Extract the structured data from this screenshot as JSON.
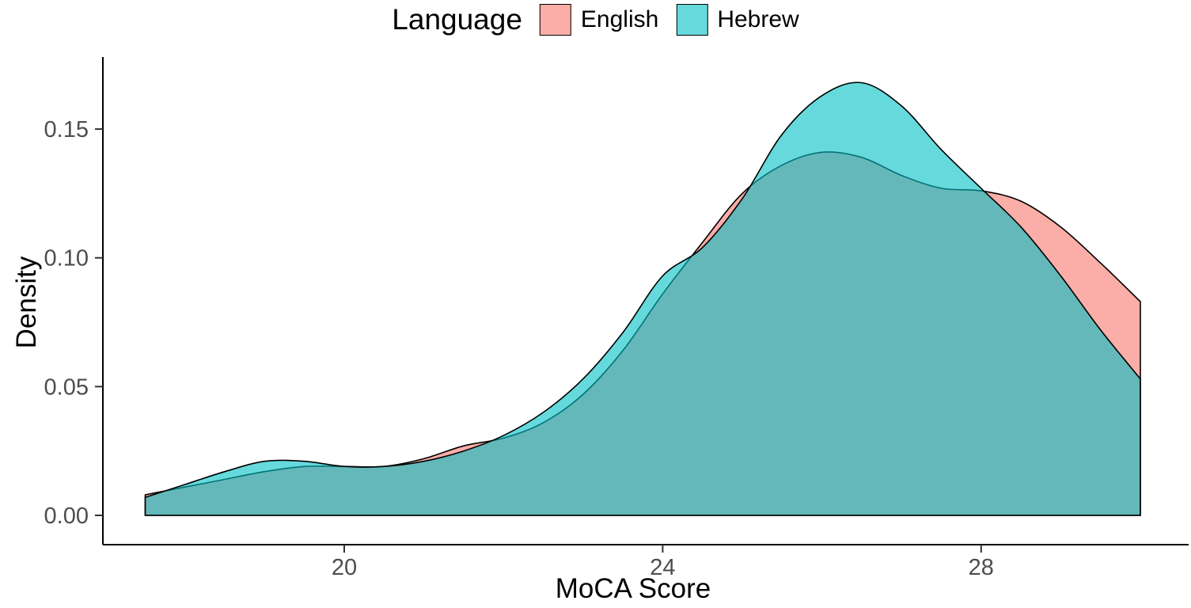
{
  "legend": {
    "title": "Language"
  },
  "axes": {
    "x_label": "MoCA Score",
    "y_label": "Density",
    "x_ticks": [
      {
        "value": 20,
        "label": "20"
      },
      {
        "value": 24,
        "label": "24"
      },
      {
        "value": 28,
        "label": "28"
      }
    ],
    "y_ticks": [
      {
        "value": 0.0,
        "label": "0.00"
      },
      {
        "value": 0.05,
        "label": "0.05"
      },
      {
        "value": 0.1,
        "label": "0.10"
      },
      {
        "value": 0.15,
        "label": "0.15"
      }
    ]
  },
  "chart_data": {
    "type": "area",
    "subtype": "overlapping-density-curves",
    "title": "",
    "xlabel": "MoCA Score",
    "ylabel": "Density",
    "legend_title": "Language",
    "legend_position": "top-center",
    "grid": false,
    "xlim": [
      17.5,
      30
    ],
    "ylim": [
      0,
      0.175
    ],
    "x": [
      17.5,
      18,
      18.5,
      19,
      19.5,
      20,
      20.5,
      21,
      21.5,
      22,
      22.5,
      23,
      23.5,
      24,
      24.5,
      25,
      25.5,
      26,
      26.5,
      27,
      27.5,
      28,
      28.5,
      29,
      29.5,
      30
    ],
    "series": [
      {
        "name": "English",
        "color": "#F8766D",
        "fill_opacity": 0.6,
        "outline_color": "#000000",
        "values": [
          0.008,
          0.011,
          0.014,
          0.017,
          0.019,
          0.019,
          0.019,
          0.022,
          0.027,
          0.03,
          0.036,
          0.047,
          0.064,
          0.086,
          0.106,
          0.125,
          0.136,
          0.141,
          0.139,
          0.132,
          0.127,
          0.126,
          0.122,
          0.112,
          0.098,
          0.083
        ]
      },
      {
        "name": "Hebrew",
        "color": "#00BFC4",
        "fill_opacity": 0.6,
        "outline_color": "#000000",
        "values": [
          0.007,
          0.012,
          0.017,
          0.021,
          0.021,
          0.019,
          0.019,
          0.021,
          0.025,
          0.031,
          0.04,
          0.053,
          0.071,
          0.093,
          0.104,
          0.123,
          0.148,
          0.163,
          0.168,
          0.159,
          0.142,
          0.127,
          0.112,
          0.093,
          0.072,
          0.053
        ]
      }
    ],
    "annotations": []
  }
}
